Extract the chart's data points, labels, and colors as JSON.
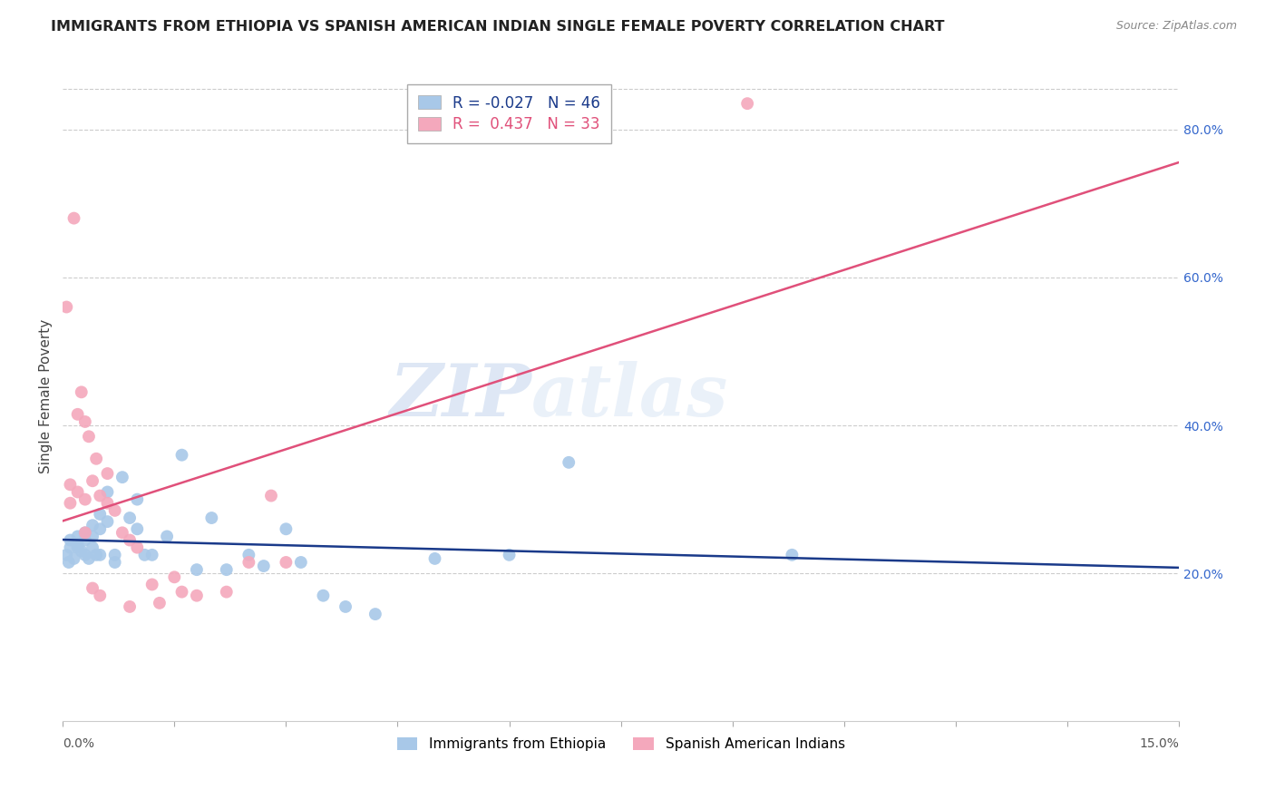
{
  "title": "IMMIGRANTS FROM ETHIOPIA VS SPANISH AMERICAN INDIAN SINGLE FEMALE POVERTY CORRELATION CHART",
  "source": "Source: ZipAtlas.com",
  "ylabel": "Single Female Poverty",
  "right_yticks": [
    "20.0%",
    "40.0%",
    "60.0%",
    "80.0%"
  ],
  "right_ytick_vals": [
    0.2,
    0.4,
    0.6,
    0.8
  ],
  "legend_blue_R": "-0.027",
  "legend_blue_N": "46",
  "legend_pink_R": "0.437",
  "legend_pink_N": "33",
  "legend_label_blue": "Immigrants from Ethiopia",
  "legend_label_pink": "Spanish American Indians",
  "blue_color": "#a8c8e8",
  "pink_color": "#f4a8bc",
  "blue_line_color": "#1a3a8a",
  "pink_line_color": "#e0507a",
  "watermark_zip": "ZIP",
  "watermark_atlas": "atlas",
  "xlim": [
    0.0,
    0.15
  ],
  "ylim": [
    0.0,
    0.88
  ],
  "blue_x": [
    0.0005,
    0.0008,
    0.001,
    0.001,
    0.0015,
    0.002,
    0.002,
    0.002,
    0.0025,
    0.003,
    0.003,
    0.003,
    0.0035,
    0.004,
    0.004,
    0.004,
    0.0045,
    0.005,
    0.005,
    0.005,
    0.006,
    0.006,
    0.007,
    0.007,
    0.008,
    0.009,
    0.01,
    0.01,
    0.011,
    0.012,
    0.014,
    0.016,
    0.018,
    0.02,
    0.022,
    0.025,
    0.027,
    0.03,
    0.032,
    0.035,
    0.038,
    0.042,
    0.05,
    0.06,
    0.068,
    0.098
  ],
  "blue_y": [
    0.225,
    0.215,
    0.235,
    0.245,
    0.22,
    0.25,
    0.24,
    0.235,
    0.23,
    0.255,
    0.245,
    0.225,
    0.22,
    0.265,
    0.25,
    0.235,
    0.225,
    0.28,
    0.26,
    0.225,
    0.31,
    0.27,
    0.225,
    0.215,
    0.33,
    0.275,
    0.3,
    0.26,
    0.225,
    0.225,
    0.25,
    0.36,
    0.205,
    0.275,
    0.205,
    0.225,
    0.21,
    0.26,
    0.215,
    0.17,
    0.155,
    0.145,
    0.22,
    0.225,
    0.35,
    0.225
  ],
  "pink_x": [
    0.0005,
    0.001,
    0.001,
    0.0015,
    0.002,
    0.002,
    0.0025,
    0.003,
    0.003,
    0.003,
    0.0035,
    0.004,
    0.004,
    0.0045,
    0.005,
    0.005,
    0.006,
    0.006,
    0.007,
    0.008,
    0.009,
    0.009,
    0.01,
    0.012,
    0.013,
    0.015,
    0.016,
    0.018,
    0.022,
    0.025,
    0.028,
    0.03,
    0.092
  ],
  "pink_y": [
    0.56,
    0.32,
    0.295,
    0.68,
    0.415,
    0.31,
    0.445,
    0.405,
    0.3,
    0.255,
    0.385,
    0.325,
    0.18,
    0.355,
    0.305,
    0.17,
    0.335,
    0.295,
    0.285,
    0.255,
    0.245,
    0.155,
    0.235,
    0.185,
    0.16,
    0.195,
    0.175,
    0.17,
    0.175,
    0.215,
    0.305,
    0.215,
    0.835
  ]
}
